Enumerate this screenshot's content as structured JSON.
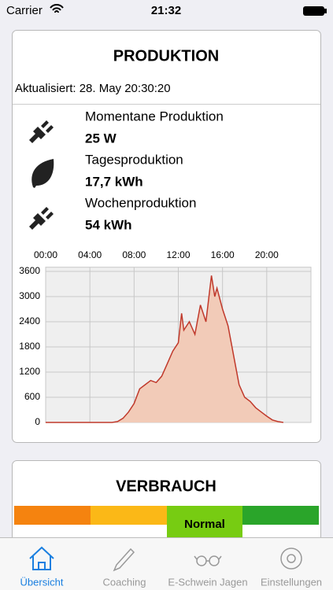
{
  "status_bar": {
    "carrier": "Carrier",
    "time": "21:32"
  },
  "production_card": {
    "title": "PRODUKTION",
    "updated": "Aktualisiert: 28. May 20:30:20",
    "items": [
      {
        "label": "Momentane Produktion",
        "value": "25 W"
      },
      {
        "label": "Tagesproduktion",
        "value": "17,7 kWh"
      },
      {
        "label": "Wochenproduktion",
        "value": "54 kWh"
      }
    ]
  },
  "chart_data": {
    "type": "area",
    "x": [
      0,
      6,
      6.5,
      7,
      7.5,
      8,
      8.5,
      9,
      9.5,
      10,
      10.5,
      11,
      11.5,
      12,
      12.3,
      12.5,
      13,
      13.5,
      14,
      14.5,
      15,
      15.3,
      15.5,
      16,
      16.5,
      17,
      17.5,
      18,
      18.5,
      19,
      19.5,
      20,
      20.5,
      21,
      21.5
    ],
    "values": [
      0,
      0,
      20,
      100,
      250,
      450,
      800,
      900,
      1000,
      950,
      1100,
      1400,
      1700,
      1900,
      2600,
      2200,
      2400,
      2100,
      2800,
      2400,
      3500,
      3000,
      3200,
      2700,
      2300,
      1600,
      900,
      600,
      500,
      350,
      250,
      150,
      60,
      20,
      0
    ],
    "color": "#c0392b",
    "fill": "#f2cbb8",
    "xlim": [
      0,
      24
    ],
    "xticks": [
      {
        "value": 0,
        "label": "00:00"
      },
      {
        "value": 4,
        "label": "04:00"
      },
      {
        "value": 8,
        "label": "08:00"
      },
      {
        "value": 12,
        "label": "12:00"
      },
      {
        "value": 16,
        "label": "16:00"
      },
      {
        "value": 20,
        "label": "20:00"
      }
    ],
    "ylim": [
      0,
      3700
    ],
    "yticks": [
      0,
      600,
      1200,
      1800,
      2400,
      3000,
      3600
    ],
    "grid": true
  },
  "consumption_card": {
    "title": "VERBRAUCH",
    "level": "Normal"
  },
  "tab_bar": {
    "items": [
      "Übersicht",
      "Coaching",
      "E-Schwein Jagen",
      "Einstellungen"
    ]
  }
}
